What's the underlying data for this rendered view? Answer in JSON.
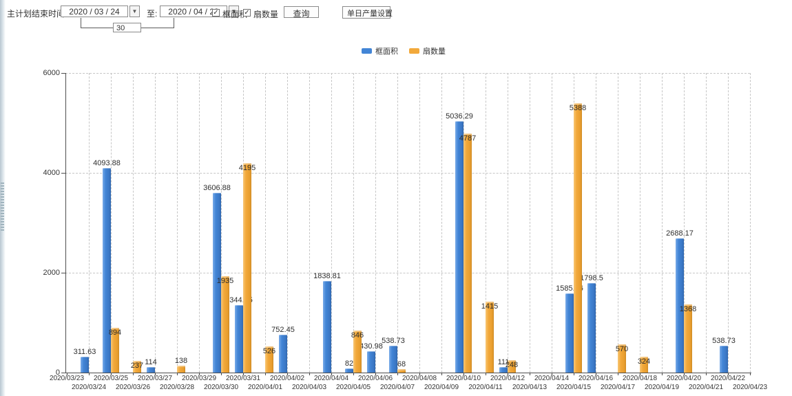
{
  "toolbar": {
    "plan_end_label": "主计划结束时间:",
    "date_from": "2020 / 03 / 24",
    "to_label": "至:",
    "date_to": "2020 / 04 / 23",
    "days_value": "30",
    "checkbox_frame_area_label": "框面积",
    "checkbox_sash_count_label": "扇数量",
    "checkbox_checked_glyph": "✓",
    "dropdown_arrow_glyph": "▼",
    "query_button_label": "查询",
    "daily_output_button_label": "单日产量设置"
  },
  "legend": {
    "frame_area": "框面积",
    "sash_count": "扇数量"
  },
  "colors": {
    "frame_area_blue": "#4285d6",
    "sash_count_orange": "#f2a93b",
    "axis": "#4d4d4d",
    "gridline": "#c6c6c6"
  },
  "chart_data": {
    "type": "bar",
    "title": "",
    "xlabel": "",
    "ylabel": "",
    "ylim": [
      0,
      6000
    ],
    "yticks": [
      0,
      2000,
      4000,
      6000
    ],
    "grid": true,
    "legend_position": "top",
    "categories": [
      "2020/03/23",
      "2020/03/24",
      "2020/03/25",
      "2020/03/26",
      "2020/03/27",
      "2020/03/28",
      "2020/03/29",
      "2020/03/30",
      "2020/03/31",
      "2020/04/01",
      "2020/04/02",
      "2020/04/03",
      "2020/04/04",
      "2020/04/05",
      "2020/04/06",
      "2020/04/07",
      "2020/04/08",
      "2020/04/09",
      "2020/04/10",
      "2020/04/11",
      "2020/04/12",
      "2020/04/13",
      "2020/04/14",
      "2020/04/15",
      "2020/04/16",
      "2020/04/17",
      "2020/04/18",
      "2020/04/19",
      "2020/04/20",
      "2020/04/21",
      "2020/04/22",
      "2020/04/23"
    ],
    "series": [
      {
        "name": "框面积",
        "color": "#4285d6",
        "values": [
          null,
          311.63,
          4093.88,
          null,
          114,
          null,
          null,
          3606.88,
          1344.95,
          null,
          752.45,
          null,
          1838.81,
          82,
          430.98,
          538.73,
          null,
          null,
          5036.29,
          null,
          111,
          null,
          null,
          1585.96,
          1798.5,
          null,
          null,
          null,
          2688.17,
          null,
          538.73,
          null
        ]
      },
      {
        "name": "扇数量",
        "color": "#f2a93b",
        "values": [
          null,
          null,
          894,
          237,
          null,
          138,
          null,
          1935,
          4195,
          526,
          null,
          null,
          null,
          846,
          null,
          68,
          null,
          null,
          4787,
          1415,
          248,
          null,
          null,
          5388,
          null,
          570,
          324,
          null,
          1368,
          null,
          null,
          null
        ]
      }
    ]
  }
}
